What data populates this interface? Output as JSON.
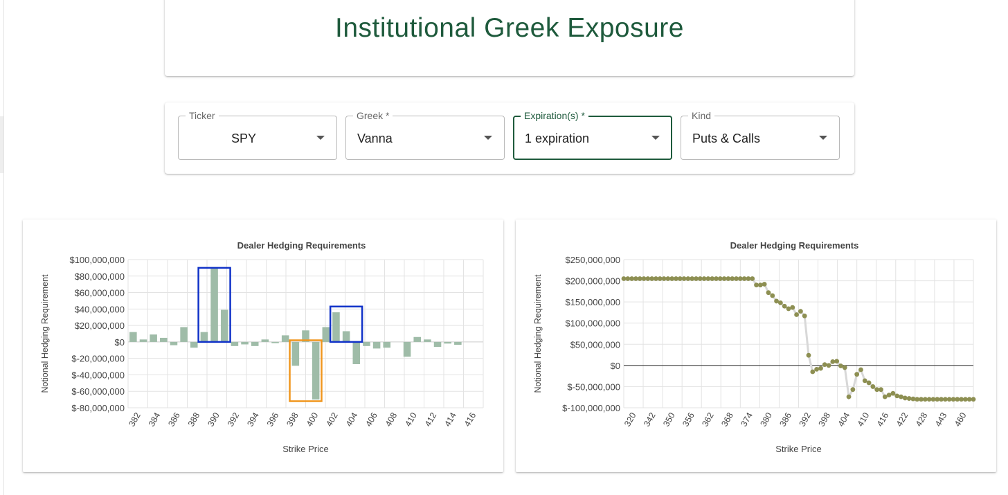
{
  "page": {
    "title": "Institutional Greek Exposure"
  },
  "filters": [
    {
      "label": "Ticker",
      "value": "SPY"
    },
    {
      "label": "Greek *",
      "value": "Vanna"
    },
    {
      "label": "Expiration(s) *",
      "value": "1 expiration"
    },
    {
      "label": "Kind",
      "value": "Puts & Calls"
    }
  ],
  "colors": {
    "accent": "#1e5a3c",
    "bar": "#9fbca8",
    "dot": "#8d8f52",
    "line": "#d8d8d8",
    "highlight_blue": "#1032c8",
    "highlight_orange": "#f0961e"
  },
  "chart_data": [
    {
      "type": "bar",
      "title": "Dealer Hedging Requirements",
      "xlabel": "Strike Price",
      "ylabel": "Notional Hedging Requirement",
      "ylim": [
        -80000000,
        100000000
      ],
      "yticks": [
        100000000,
        80000000,
        60000000,
        40000000,
        20000000,
        0,
        -20000000,
        -40000000,
        -60000000,
        -80000000
      ],
      "ytick_labels": [
        "$100,000,000",
        "$80,000,000",
        "$60,000,000",
        "$40,000,000",
        "$20,000,000",
        "$0",
        "$-20,000,000",
        "$-40,000,000",
        "$-60,000,000",
        "$-80,000,000"
      ],
      "tick_labels": [
        "382",
        "384",
        "386",
        "388",
        "390",
        "392",
        "394",
        "396",
        "398",
        "400",
        "402",
        "404",
        "406",
        "408",
        "410",
        "412",
        "414",
        "416"
      ],
      "categories": [
        382,
        383,
        384,
        385,
        386,
        387,
        388,
        389,
        390,
        391,
        392,
        393,
        394,
        395,
        396,
        397,
        398,
        399,
        400,
        401,
        402,
        403,
        404,
        405,
        406,
        407,
        408,
        409,
        410,
        411,
        412,
        413,
        414,
        415,
        416
      ],
      "values": [
        12000000,
        3000000,
        9000000,
        5000000,
        -4000000,
        18000000,
        -7000000,
        12000000,
        89000000,
        39000000,
        -5000000,
        -3000000,
        -5000000,
        3000000,
        -1500000,
        8000000,
        -29000000,
        14000000,
        -70000000,
        18000000,
        36000000,
        13000000,
        -27000000,
        -5000000,
        -8000000,
        -7000000,
        0,
        -18000000,
        6000000,
        3000000,
        -6000000,
        -2000000,
        -3500000,
        0,
        0
      ],
      "highlights": [
        {
          "color": "blue",
          "from_strike": 389,
          "to_strike": 391,
          "range": [
            0,
            90000000
          ]
        },
        {
          "color": "orange",
          "from_strike": 398,
          "to_strike": 400,
          "range": [
            -72000000,
            2000000
          ]
        },
        {
          "color": "blue",
          "from_strike": 402,
          "to_strike": 404,
          "range": [
            0,
            43000000
          ]
        }
      ],
      "grid": true,
      "legend": "none"
    },
    {
      "type": "line",
      "title": "Dealer Hedging Requirements",
      "xlabel": "Strike Price",
      "ylabel": "Notional Hedging Requirement",
      "ylim": [
        -100000000,
        250000000
      ],
      "yticks": [
        250000000,
        200000000,
        150000000,
        100000000,
        50000000,
        0,
        -50000000,
        -100000000
      ],
      "ytick_labels": [
        "$250,000,000",
        "$200,000,000",
        "$150,000,000",
        "$100,000,000",
        "$50,000,000",
        "$0",
        "$-50,000,000",
        "$-100,000,000"
      ],
      "tick_labels": [
        "320",
        "342",
        "350",
        "356",
        "362",
        "368",
        "374",
        "380",
        "386",
        "392",
        "398",
        "404",
        "410",
        "416",
        "422",
        "428",
        "443",
        "460"
      ],
      "y": [
        205000000,
        205000000,
        205000000,
        205000000,
        205000000,
        205000000,
        205000000,
        205000000,
        205000000,
        205000000,
        205000000,
        205000000,
        205000000,
        205000000,
        205000000,
        205000000,
        205000000,
        205000000,
        205000000,
        205000000,
        205000000,
        205000000,
        205000000,
        205000000,
        205000000,
        205000000,
        205000000,
        205000000,
        205000000,
        205000000,
        205000000,
        205000000,
        205000000,
        190000000,
        190000000,
        192000000,
        172000000,
        165000000,
        152000000,
        148000000,
        140000000,
        134000000,
        137000000,
        120000000,
        128000000,
        117000000,
        24000000,
        -15000000,
        -9000000,
        -7000000,
        2000000,
        0,
        9000000,
        10000000,
        -1000000,
        -5000000,
        -74000000,
        -57000000,
        -21000000,
        -10000000,
        -36000000,
        -41000000,
        -50000000,
        -57000000,
        -57000000,
        -74000000,
        -70000000,
        -66000000,
        -72000000,
        -74000000,
        -77000000,
        -78000000,
        -79000000,
        -80000000,
        -80000000,
        -80000000,
        -80000000,
        -80000000,
        -80000000,
        -80000000,
        -80000000,
        -80000000,
        -80000000,
        -80000000,
        -80000000,
        -80000000,
        -80000000,
        -80000000
      ],
      "zero_line": true,
      "grid": true,
      "legend": "none"
    }
  ]
}
